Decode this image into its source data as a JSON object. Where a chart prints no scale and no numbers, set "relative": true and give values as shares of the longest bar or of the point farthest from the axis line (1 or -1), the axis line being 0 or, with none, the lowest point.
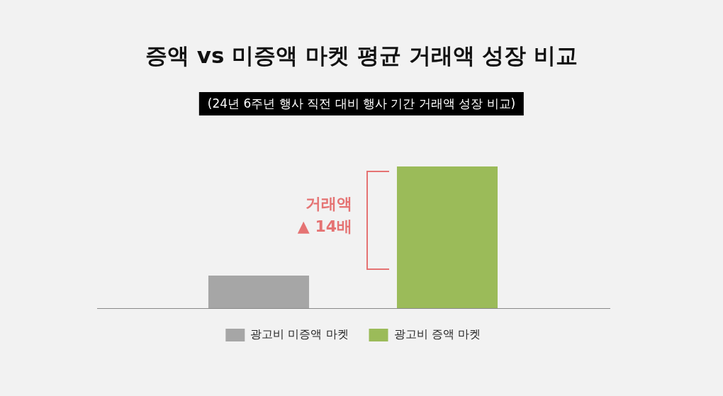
{
  "chart_data": {
    "type": "bar",
    "title": "증액 vs 미증액 마켓 평균 거래액 성장 비교",
    "subtitle": "(24년 6주년 행사 직전 대비 행사 기간 거래액 성장 비교)",
    "relative": true,
    "stacked": true,
    "categories": [
      null,
      null
    ],
    "series": [
      {
        "name": "광고비 미증액 마켓",
        "color": "#a6a6a6",
        "values": [
          0.23,
          null
        ]
      },
      {
        "name": "광고비 증액 마켓",
        "color": "#9bbb59",
        "values": [
          null,
          1
        ]
      }
    ],
    "annotations": [
      "거래액\n▲ 14배"
    ],
    "legend": "bottom",
    "grid": false
  }
}
